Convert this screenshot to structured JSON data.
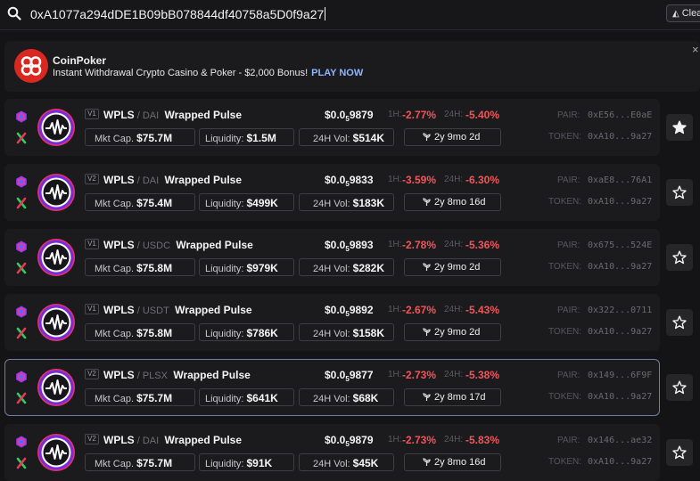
{
  "search": {
    "query": "0xA1077a294dDE1B09bB078844df40758a5D0f9a27",
    "clear_label": "Clear"
  },
  "ad": {
    "title": "CoinPoker",
    "body": "Instant Withdrawal Crypto Casino & Poker - $2,000 Bonus!",
    "cta": "PLAY NOW",
    "close": "×"
  },
  "labels": {
    "mkt_cap": "Mkt Cap.",
    "liquidity": "Liquidity:",
    "vol": "24H Vol:",
    "h1": "1H:",
    "h24": "24H:",
    "pair": "PAIR:",
    "token": "TOKEN:",
    "price_prefix": "$0.0",
    "price_sub": "5"
  },
  "colors": {
    "negative": "#f0555a",
    "accent": "#8fb4ff",
    "selected_border": "#6f7da8"
  },
  "rows": [
    {
      "version": "V1",
      "symbol": "WPLS",
      "quote": "DAI",
      "name": "Wrapped Pulse",
      "price_digits": "9879",
      "ch1": "-2.77%",
      "ch24": "-5.40%",
      "mkt_cap": "$75.7M",
      "liquidity": "$1.5M",
      "vol": "$514K",
      "age": "2y 9mo 2d",
      "pair": "0xE56...E0aE",
      "token": "0xA10...9a27",
      "starred": true
    },
    {
      "version": "V2",
      "symbol": "WPLS",
      "quote": "DAI",
      "name": "Wrapped Pulse",
      "price_digits": "9833",
      "ch1": "-3.59%",
      "ch24": "-6.30%",
      "mkt_cap": "$75.4M",
      "liquidity": "$499K",
      "vol": "$183K",
      "age": "2y 8mo 16d",
      "pair": "0xaE8...76A1",
      "token": "0xA10...9a27",
      "starred": false
    },
    {
      "version": "V1",
      "symbol": "WPLS",
      "quote": "USDC",
      "name": "Wrapped Pulse",
      "price_digits": "9893",
      "ch1": "-2.78%",
      "ch24": "-5.36%",
      "mkt_cap": "$75.8M",
      "liquidity": "$979K",
      "vol": "$282K",
      "age": "2y 9mo 2d",
      "pair": "0x675...524E",
      "token": "0xA10...9a27",
      "starred": false
    },
    {
      "version": "V1",
      "symbol": "WPLS",
      "quote": "USDT",
      "name": "Wrapped Pulse",
      "price_digits": "9892",
      "ch1": "-2.67%",
      "ch24": "-5.43%",
      "mkt_cap": "$75.8M",
      "liquidity": "$786K",
      "vol": "$158K",
      "age": "2y 9mo 2d",
      "pair": "0x322...0711",
      "token": "0xA10...9a27",
      "starred": false
    },
    {
      "version": "V2",
      "symbol": "WPLS",
      "quote": "PLSX",
      "name": "Wrapped Pulse",
      "price_digits": "9877",
      "ch1": "-2.73%",
      "ch24": "-5.38%",
      "mkt_cap": "$75.7M",
      "liquidity": "$641K",
      "vol": "$68K",
      "age": "2y 8mo 17d",
      "pair": "0x149...6F9F",
      "token": "0xA10...9a27",
      "starred": false
    },
    {
      "version": "V2",
      "symbol": "WPLS",
      "quote": "DAI",
      "name": "Wrapped Pulse",
      "price_digits": "9879",
      "ch1": "-2.73%",
      "ch24": "-5.83%",
      "mkt_cap": "$75.7M",
      "liquidity": "$91K",
      "vol": "$45K",
      "age": "2y 8mo 16d",
      "pair": "0x146...ae32",
      "token": "0xA10...9a27",
      "starred": false
    }
  ]
}
